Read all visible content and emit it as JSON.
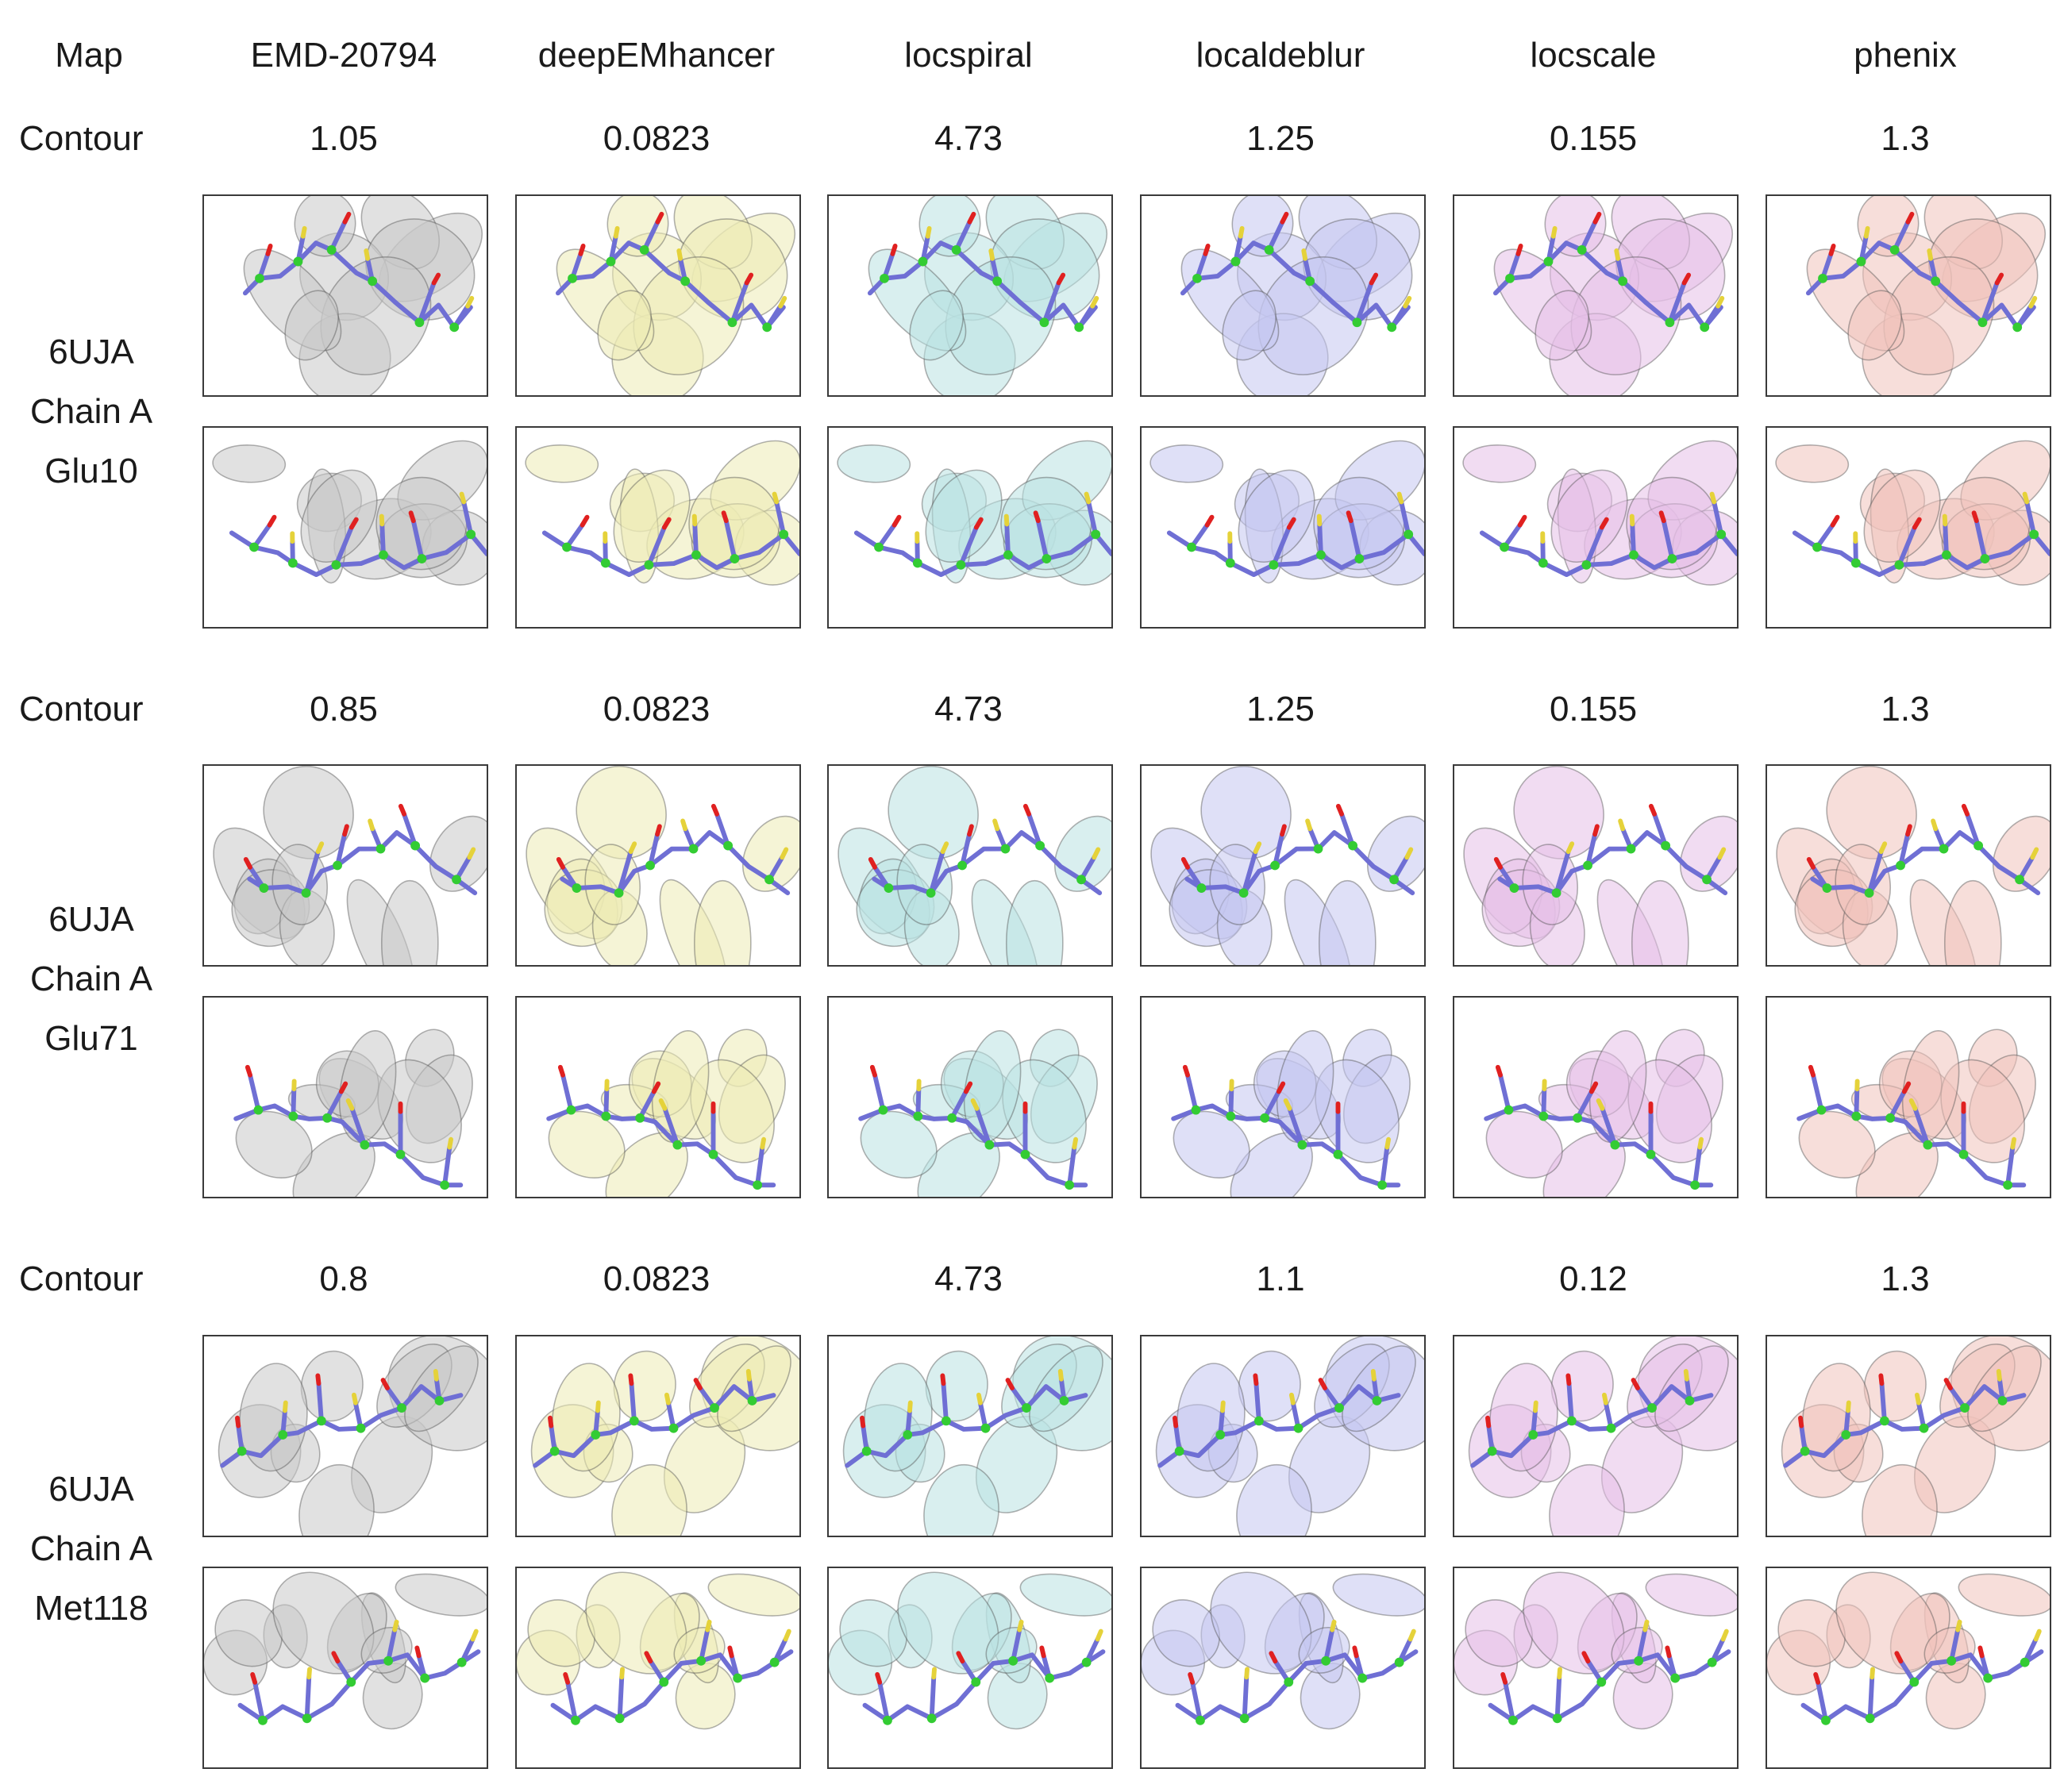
{
  "header": {
    "map_label": "Map",
    "columns": [
      "EMD-20794",
      "deepEMhancer",
      "locspiral",
      "localdeblur",
      "locscale",
      "phenix"
    ]
  },
  "groups": [
    {
      "contour_label": "Contour",
      "contours": [
        "1.05",
        "0.0823",
        "4.73",
        "1.25",
        "0.155",
        "1.3"
      ],
      "structure": [
        "6UJA",
        "Chain A",
        "Glu10"
      ]
    },
    {
      "contour_label": "Contour",
      "contours": [
        "0.85",
        "0.0823",
        "4.73",
        "1.25",
        "0.155",
        "1.3"
      ],
      "structure": [
        "6UJA",
        "Chain A",
        "Glu71"
      ]
    },
    {
      "contour_label": "Contour",
      "contours": [
        "0.8",
        "0.0823",
        "4.73",
        "1.1",
        "0.12",
        "1.3"
      ],
      "structure": [
        "6UJA",
        "Chain A",
        "Met118"
      ]
    }
  ],
  "colors": {
    "map_surfaces": [
      "#c8c8c8",
      "#ecebb4",
      "#b9e2e2",
      "#c4c6f0",
      "#e6bfe8",
      "#f1c2bb"
    ],
    "stick_model": "#6f6fd4",
    "oxygen": "#e02020",
    "sulfur": "#e5d23a",
    "c_alpha_sphere": "#33cc33",
    "panel_border": "#3a3a3a"
  },
  "icons": [
    "density-map-panel"
  ]
}
